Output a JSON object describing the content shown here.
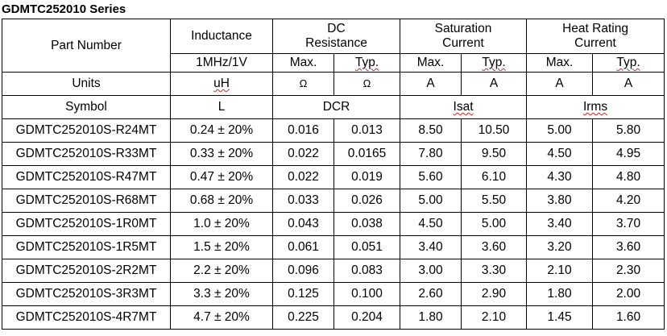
{
  "title": "GDMTC252010 Series",
  "header": {
    "part_number": "Part Number",
    "inductance": "Inductance",
    "dc_resistance": "DC\nResistance",
    "saturation_current": "Saturation\nCurrent",
    "heat_rating_current": "Heat Rating\nCurrent",
    "freq": "1MHz/1V",
    "max": "Max.",
    "typ": "Typ."
  },
  "units": {
    "label": "Units",
    "inductance": "uH",
    "dcr_max": "Ω",
    "dcr_typ": "Ω",
    "isat_max": "A",
    "isat_typ": "A",
    "irms_max": "A",
    "irms_typ": "A"
  },
  "symbols": {
    "label": "Symbol",
    "inductance": "L",
    "dcr": "DCR",
    "isat": "Isat",
    "irms": "Irms"
  },
  "rows": [
    {
      "part": "GDMTC252010S-R24MT",
      "l": "0.24 ± 20%",
      "dcr_max": "0.016",
      "dcr_typ": "0.013",
      "isat_max": "8.50",
      "isat_typ": "10.50",
      "irms_max": "5.00",
      "irms_typ": "5.80"
    },
    {
      "part": "GDMTC252010S-R33MT",
      "l": "0.33 ± 20%",
      "dcr_max": "0.022",
      "dcr_typ": "0.0165",
      "isat_max": "7.80",
      "isat_typ": "9.50",
      "irms_max": "4.50",
      "irms_typ": "4.95"
    },
    {
      "part": "GDMTC252010S-R47MT",
      "l": "0.47 ± 20%",
      "dcr_max": "0.022",
      "dcr_typ": "0.019",
      "isat_max": "5.60",
      "isat_typ": "6.10",
      "irms_max": "4.30",
      "irms_typ": "4.80"
    },
    {
      "part": "GDMTC252010S-R68MT",
      "l": "0.68 ± 20%",
      "dcr_max": "0.033",
      "dcr_typ": "0.026",
      "isat_max": "5.00",
      "isat_typ": "5.50",
      "irms_max": "3.80",
      "irms_typ": "4.20"
    },
    {
      "part": "GDMTC252010S-1R0MT",
      "l": "1.0 ± 20%",
      "dcr_max": "0.043",
      "dcr_typ": "0.038",
      "isat_max": "4.50",
      "isat_typ": "5.00",
      "irms_max": "3.40",
      "irms_typ": "3.70"
    },
    {
      "part": "GDMTC252010S-1R5MT",
      "l": "1.5 ± 20%",
      "dcr_max": "0.061",
      "dcr_typ": "0.051",
      "isat_max": "3.40",
      "isat_typ": "3.60",
      "irms_max": "3.20",
      "irms_typ": "3.60"
    },
    {
      "part": "GDMTC252010S-2R2MT",
      "l": "2.2 ± 20%",
      "dcr_max": "0.096",
      "dcr_typ": "0.083",
      "isat_max": "3.00",
      "isat_typ": "3.30",
      "irms_max": "2.10",
      "irms_typ": "2.30"
    },
    {
      "part": "GDMTC252010S-3R3MT",
      "l": "3.3 ± 20%",
      "dcr_max": "0.125",
      "dcr_typ": "0.100",
      "isat_max": "2.60",
      "isat_typ": "2.90",
      "irms_max": "1.80",
      "irms_typ": "2.00"
    },
    {
      "part": "GDMTC252010S-4R7MT",
      "l": "4.7 ± 20%",
      "dcr_max": "0.225",
      "dcr_typ": "0.204",
      "isat_max": "1.80",
      "isat_typ": "2.10",
      "irms_max": "1.45",
      "irms_typ": "1.60"
    }
  ]
}
